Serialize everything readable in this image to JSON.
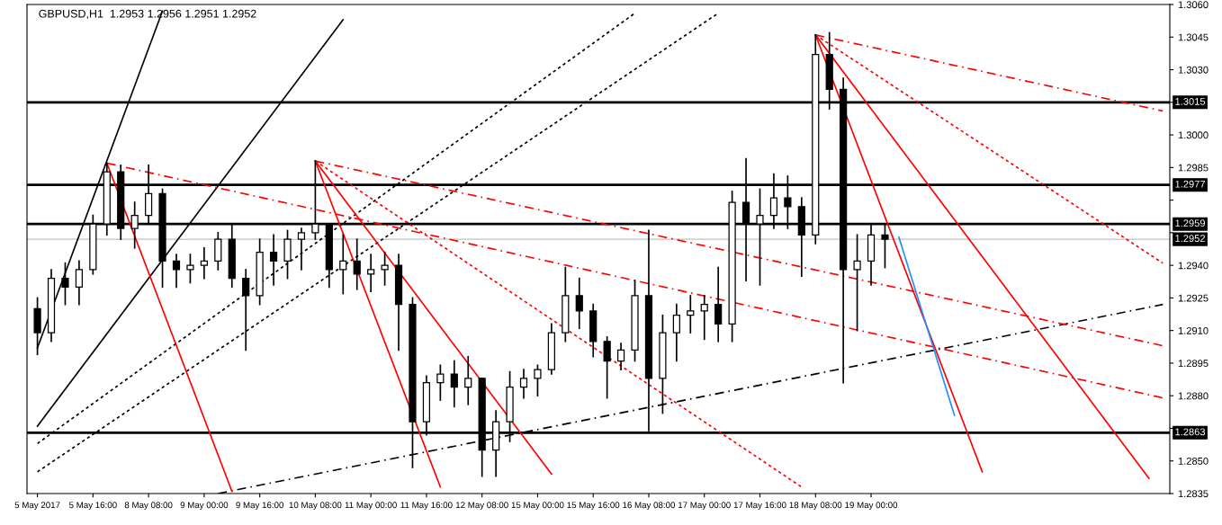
{
  "chart_data": {
    "type": "candlestick",
    "title": "GBPUSD,H1  1.2953 1.2956 1.2951 1.2952",
    "color": "#000000",
    "categories": [
      "5 May 2017",
      null,
      null,
      null,
      "5 May 16:00",
      null,
      null,
      null,
      "8 May 08:00",
      null,
      null,
      null,
      "9 May 00:00",
      null,
      null,
      null,
      "9 May 16:00",
      null,
      null,
      null,
      "10 May 08:00",
      null,
      null,
      null,
      "11 May 00:00",
      null,
      null,
      null,
      "11 May 16:00",
      null,
      null,
      null,
      "12 May 08:00",
      null,
      null,
      null,
      "15 May 00:00",
      null,
      null,
      null,
      "15 May 16:00",
      null,
      null,
      null,
      "16 May 08:00",
      null,
      null,
      null,
      "17 May 00:00",
      null,
      null,
      null,
      "17 May 16:00",
      null,
      null,
      null,
      "18 May 08:00",
      null,
      null,
      null,
      "19 May 00:00",
      null,
      null,
      null,
      null,
      null,
      null,
      null,
      null,
      null,
      null,
      null,
      null,
      null,
      null,
      null,
      null,
      null,
      null,
      null,
      null,
      null
    ],
    "ohlc": [
      [
        1.292,
        1.2925,
        1.2899,
        1.2909
      ],
      [
        1.2909,
        1.2938,
        1.2905,
        1.2934
      ],
      [
        1.2934,
        1.2941,
        1.2922,
        1.293
      ],
      [
        1.293,
        1.2942,
        1.2922,
        1.2938
      ],
      [
        1.2938,
        1.2963,
        1.2936,
        1.2959
      ],
      [
        1.2959,
        1.2987,
        1.2954,
        1.2983
      ],
      [
        1.2983,
        1.2986,
        1.2952,
        1.2957
      ],
      [
        1.2957,
        1.2969,
        1.2948,
        1.2963
      ],
      [
        1.2963,
        1.2986,
        1.2959,
        1.2973
      ],
      [
        1.2973,
        1.2975,
        1.293,
        1.2942
      ],
      [
        1.2942,
        1.2945,
        1.293,
        1.2938
      ],
      [
        1.2938,
        1.2945,
        1.2932,
        1.294
      ],
      [
        1.294,
        1.2948,
        1.2934,
        1.2942
      ],
      [
        1.2942,
        1.2955,
        1.2938,
        1.2952
      ],
      [
        1.2952,
        1.2959,
        1.293,
        1.2934
      ],
      [
        1.2934,
        1.2938,
        1.2901,
        1.2926
      ],
      [
        1.2926,
        1.2952,
        1.2922,
        1.2946
      ],
      [
        1.2946,
        1.2954,
        1.2931,
        1.2942
      ],
      [
        1.2942,
        1.2956,
        1.2934,
        1.2952
      ],
      [
        1.2952,
        1.2957,
        1.2938,
        1.2955
      ],
      [
        1.2955,
        1.2988,
        1.2952,
        1.2959
      ],
      [
        1.2959,
        1.2959,
        1.293,
        1.2938
      ],
      [
        1.2938,
        1.2954,
        1.2927,
        1.2942
      ],
      [
        1.2942,
        1.2952,
        1.2929,
        1.2936
      ],
      [
        1.2936,
        1.2945,
        1.2928,
        1.2938
      ],
      [
        1.2938,
        1.2946,
        1.2931,
        1.294
      ],
      [
        1.294,
        1.2945,
        1.2901,
        1.2922
      ],
      [
        1.2922,
        1.2925,
        1.2847,
        1.2868
      ],
      [
        1.2868,
        1.2889,
        1.2862,
        1.2886
      ],
      [
        1.2886,
        1.2894,
        1.2878,
        1.289
      ],
      [
        1.289,
        1.2896,
        1.2875,
        1.2884
      ],
      [
        1.2884,
        1.2898,
        1.2876,
        1.2888
      ],
      [
        1.2888,
        1.2888,
        1.2843,
        1.2855
      ],
      [
        1.2855,
        1.2873,
        1.2843,
        1.2868
      ],
      [
        1.2868,
        1.2891,
        1.2859,
        1.2884
      ],
      [
        1.2884,
        1.2892,
        1.2879,
        1.2888
      ],
      [
        1.2888,
        1.2894,
        1.288,
        1.2892
      ],
      [
        1.2892,
        1.2913,
        1.289,
        1.2909
      ],
      [
        1.2909,
        1.2939,
        1.2905,
        1.2926
      ],
      [
        1.2926,
        1.2934,
        1.2911,
        1.2919
      ],
      [
        1.2919,
        1.2922,
        1.2898,
        1.2905
      ],
      [
        1.2905,
        1.2907,
        1.2879,
        1.2896
      ],
      [
        1.2896,
        1.2904,
        1.2892,
        1.2901
      ],
      [
        1.2901,
        1.2933,
        1.2896,
        1.2926
      ],
      [
        1.2926,
        1.2956,
        1.2864,
        1.2888
      ],
      [
        1.2888,
        1.2917,
        1.2872,
        1.2909
      ],
      [
        1.2909,
        1.2922,
        1.2896,
        1.2917
      ],
      [
        1.2917,
        1.2926,
        1.2909,
        1.2919
      ],
      [
        1.2919,
        1.2926,
        1.2906,
        1.2922
      ],
      [
        1.2922,
        1.2939,
        1.2905,
        1.2913
      ],
      [
        1.2913,
        1.2974,
        1.2905,
        1.2969
      ],
      [
        1.2969,
        1.2989,
        1.2933,
        1.2959
      ],
      [
        1.2959,
        1.2975,
        1.2931,
        1.2963
      ],
      [
        1.2963,
        1.2982,
        1.2957,
        1.2971
      ],
      [
        1.2971,
        1.2981,
        1.2957,
        1.2967
      ],
      [
        1.2967,
        1.2971,
        1.2935,
        1.2954
      ],
      [
        1.2954,
        1.3046,
        1.295,
        1.3037
      ],
      [
        1.3037,
        1.3047,
        1.3012,
        1.3021
      ],
      [
        1.3021,
        1.3026,
        1.2886,
        1.2938
      ],
      [
        1.2938,
        1.2954,
        1.291,
        1.2942
      ],
      [
        1.2942,
        1.2959,
        1.2931,
        1.2954
      ],
      [
        1.2954,
        1.2959,
        1.2939,
        1.2952
      ],
      null,
      null,
      null,
      null,
      null,
      null,
      null,
      null,
      null,
      null,
      null,
      null,
      null,
      null,
      null,
      null,
      null,
      null,
      null,
      null
    ],
    "series": [
      {
        "type": "line",
        "color": "#000000",
        "line_style": "solid",
        "values": [
          1.2902,
          null,
          null,
          null,
          null,
          null,
          null,
          null,
          null,
          1.3057,
          null,
          null,
          null,
          null,
          null,
          null,
          null,
          null,
          null,
          null,
          null,
          null,
          null,
          null,
          null,
          null,
          null,
          null,
          null,
          null,
          null,
          null,
          null,
          null,
          null,
          null,
          null,
          null,
          null,
          null,
          null,
          null,
          null,
          null,
          null,
          null,
          null,
          null,
          null,
          null,
          null,
          null,
          null,
          null,
          null,
          null,
          null,
          null,
          null,
          null,
          null,
          null,
          null,
          null,
          null,
          null,
          null,
          null,
          null,
          null,
          null,
          null,
          null,
          null,
          null,
          null,
          null,
          null,
          null,
          null,
          null,
          null
        ]
      },
      {
        "type": "line",
        "color": "#000000",
        "line_style": "solid",
        "values": [
          1.2866,
          null,
          null,
          null,
          null,
          null,
          null,
          null,
          null,
          null,
          null,
          null,
          null,
          null,
          null,
          null,
          null,
          null,
          null,
          null,
          null,
          null,
          1.3053,
          null,
          null,
          null,
          null,
          null,
          null,
          null,
          null,
          null,
          null,
          null,
          null,
          null,
          null,
          null,
          null,
          null,
          null,
          null,
          null,
          null,
          null,
          null,
          null,
          null,
          null,
          null,
          null,
          null,
          null,
          null,
          null,
          null,
          null,
          null,
          null,
          null,
          null,
          null,
          null,
          null,
          null,
          null,
          null,
          null,
          null,
          null,
          null,
          null,
          null,
          null,
          null,
          null,
          null,
          null,
          null,
          null,
          null,
          null
        ]
      },
      {
        "type": "line",
        "color": "#000000",
        "line_style": "dotted",
        "values": [
          1.2858,
          null,
          null,
          null,
          null,
          null,
          null,
          null,
          null,
          null,
          null,
          null,
          null,
          null,
          null,
          null,
          null,
          null,
          null,
          null,
          null,
          null,
          null,
          null,
          null,
          null,
          null,
          null,
          null,
          null,
          null,
          null,
          null,
          null,
          null,
          null,
          null,
          null,
          null,
          null,
          null,
          null,
          null,
          1.3056,
          null,
          null,
          null,
          null,
          null,
          null,
          null,
          null,
          null,
          null,
          null,
          null,
          null,
          null,
          null,
          null,
          null,
          null,
          null,
          null,
          null,
          null,
          null,
          null,
          null,
          null,
          null,
          null,
          null,
          null,
          null,
          null,
          null,
          null,
          null,
          null,
          null,
          null
        ]
      },
      {
        "type": "line",
        "color": "#000000",
        "line_style": "dotted",
        "values": [
          1.2845,
          null,
          null,
          null,
          null,
          null,
          null,
          null,
          null,
          null,
          null,
          null,
          null,
          null,
          null,
          null,
          null,
          null,
          null,
          null,
          null,
          null,
          null,
          null,
          null,
          null,
          null,
          null,
          null,
          null,
          null,
          null,
          null,
          null,
          null,
          null,
          null,
          null,
          null,
          null,
          null,
          null,
          null,
          null,
          null,
          null,
          null,
          null,
          null,
          1.3056,
          null,
          null,
          null,
          null,
          null,
          null,
          null,
          null,
          null,
          null,
          null,
          null,
          null,
          null,
          null,
          null,
          null,
          null,
          null,
          null,
          null,
          null,
          null,
          null,
          null,
          null,
          null,
          null,
          null,
          null,
          null,
          null
        ]
      },
      {
        "type": "line",
        "color": "#000000",
        "line_style": "dashed",
        "values": [
          null,
          null,
          null,
          null,
          null,
          null,
          null,
          null,
          null,
          null,
          null,
          null,
          null,
          1.2835,
          null,
          null,
          null,
          null,
          null,
          null,
          null,
          null,
          null,
          null,
          null,
          null,
          null,
          null,
          null,
          null,
          null,
          null,
          null,
          null,
          null,
          null,
          null,
          null,
          null,
          null,
          null,
          null,
          null,
          null,
          null,
          null,
          null,
          null,
          null,
          null,
          null,
          null,
          null,
          null,
          null,
          null,
          null,
          null,
          null,
          null,
          null,
          null,
          null,
          null,
          null,
          null,
          null,
          null,
          null,
          null,
          null,
          null,
          null,
          null,
          null,
          null,
          null,
          null,
          null,
          null,
          null,
          1.2922
        ]
      },
      {
        "type": "line",
        "color": "#ff0000",
        "line_style": "solid",
        "values": [
          null,
          null,
          null,
          null,
          null,
          1.2987,
          null,
          null,
          null,
          null,
          null,
          null,
          null,
          null,
          1.2836,
          null,
          null,
          null,
          null,
          null,
          null,
          null,
          null,
          null,
          null,
          null,
          null,
          null,
          null,
          null,
          null,
          null,
          null,
          null,
          null,
          null,
          null,
          null,
          null,
          null,
          null,
          null,
          null,
          null,
          null,
          null,
          null,
          null,
          null,
          null,
          null,
          null,
          null,
          null,
          null,
          null,
          null,
          null,
          null,
          null,
          null,
          null,
          null,
          null,
          null,
          null,
          null,
          null,
          null,
          null,
          null,
          null,
          null,
          null,
          null,
          null,
          null,
          null,
          null,
          null,
          null,
          null
        ]
      },
      {
        "type": "line",
        "color": "#ff0000",
        "line_style": "solid",
        "values": [
          null,
          null,
          null,
          null,
          null,
          null,
          null,
          null,
          null,
          null,
          null,
          null,
          null,
          null,
          null,
          null,
          null,
          null,
          null,
          null,
          1.2988,
          null,
          null,
          null,
          null,
          null,
          null,
          null,
          null,
          1.2838,
          null,
          null,
          null,
          null,
          null,
          null,
          null,
          null,
          null,
          null,
          null,
          null,
          null,
          null,
          null,
          null,
          null,
          null,
          null,
          null,
          null,
          null,
          null,
          null,
          null,
          null,
          null,
          null,
          null,
          null,
          null,
          null,
          null,
          null,
          null,
          null,
          null,
          null,
          null,
          null,
          null,
          null,
          null,
          null,
          null,
          null,
          null,
          null,
          null,
          null,
          null,
          null
        ]
      },
      {
        "type": "line",
        "color": "#ff0000",
        "line_style": "solid",
        "values": [
          null,
          null,
          null,
          null,
          null,
          null,
          null,
          null,
          null,
          null,
          null,
          null,
          null,
          null,
          null,
          null,
          null,
          null,
          null,
          null,
          null,
          null,
          null,
          null,
          null,
          null,
          null,
          null,
          null,
          null,
          null,
          null,
          null,
          null,
          null,
          null,
          null,
          null,
          null,
          null,
          null,
          null,
          null,
          null,
          null,
          null,
          null,
          null,
          null,
          null,
          null,
          null,
          null,
          null,
          null,
          null,
          1.3046,
          null,
          null,
          null,
          null,
          null,
          null,
          null,
          null,
          null,
          null,
          null,
          1.2845,
          null,
          null,
          null,
          null,
          null,
          null,
          null,
          null,
          null,
          null,
          null,
          null,
          null
        ]
      },
      {
        "type": "line",
        "color": "#ff0000",
        "line_style": "solid",
        "values": [
          null,
          null,
          null,
          null,
          null,
          null,
          null,
          null,
          null,
          null,
          null,
          null,
          null,
          null,
          null,
          null,
          null,
          null,
          null,
          null,
          1.2988,
          null,
          null,
          null,
          null,
          null,
          null,
          null,
          null,
          null,
          null,
          null,
          null,
          null,
          null,
          null,
          null,
          1.2844,
          null,
          null,
          null,
          null,
          null,
          null,
          null,
          null,
          null,
          null,
          null,
          null,
          null,
          null,
          null,
          null,
          null,
          null,
          null,
          null,
          null,
          null,
          null,
          null,
          null,
          null,
          null,
          null,
          null,
          null,
          null,
          null,
          null,
          null,
          null,
          null,
          null,
          null,
          null,
          null,
          null,
          null,
          null,
          null
        ]
      },
      {
        "type": "line",
        "color": "#ff0000",
        "line_style": "solid",
        "values": [
          null,
          null,
          null,
          null,
          null,
          null,
          null,
          null,
          null,
          null,
          null,
          null,
          null,
          null,
          null,
          null,
          null,
          null,
          null,
          null,
          null,
          null,
          null,
          null,
          null,
          null,
          null,
          null,
          null,
          null,
          null,
          null,
          null,
          null,
          null,
          null,
          null,
          null,
          null,
          null,
          null,
          null,
          null,
          null,
          null,
          null,
          null,
          null,
          null,
          null,
          null,
          null,
          null,
          null,
          null,
          null,
          1.3046,
          null,
          null,
          null,
          null,
          null,
          null,
          null,
          null,
          null,
          null,
          null,
          null,
          null,
          null,
          null,
          null,
          null,
          null,
          null,
          null,
          null,
          null,
          null,
          1.2842,
          null
        ]
      },
      {
        "type": "line",
        "color": "#ff0000",
        "line_style": "dashed",
        "values": [
          null,
          null,
          null,
          null,
          null,
          1.2987,
          null,
          null,
          null,
          null,
          null,
          null,
          null,
          null,
          null,
          null,
          null,
          null,
          null,
          null,
          null,
          null,
          null,
          null,
          null,
          null,
          null,
          null,
          null,
          null,
          null,
          null,
          null,
          null,
          null,
          null,
          null,
          null,
          null,
          null,
          null,
          null,
          null,
          null,
          null,
          null,
          null,
          null,
          null,
          null,
          null,
          null,
          null,
          null,
          null,
          null,
          null,
          null,
          null,
          null,
          null,
          null,
          null,
          null,
          null,
          null,
          null,
          null,
          null,
          null,
          null,
          null,
          null,
          null,
          null,
          null,
          null,
          null,
          null,
          null,
          null,
          1.2879
        ]
      },
      {
        "type": "line",
        "color": "#ff0000",
        "line_style": "dashed",
        "values": [
          null,
          null,
          null,
          null,
          null,
          null,
          null,
          null,
          null,
          null,
          null,
          null,
          null,
          null,
          null,
          null,
          null,
          null,
          null,
          null,
          1.2988,
          null,
          null,
          null,
          null,
          null,
          null,
          null,
          null,
          null,
          null,
          null,
          null,
          null,
          null,
          null,
          null,
          null,
          null,
          null,
          null,
          null,
          null,
          null,
          null,
          null,
          null,
          null,
          null,
          null,
          null,
          null,
          null,
          null,
          null,
          null,
          null,
          null,
          null,
          null,
          null,
          null,
          null,
          null,
          null,
          null,
          null,
          null,
          null,
          null,
          null,
          null,
          null,
          null,
          null,
          null,
          null,
          null,
          null,
          null,
          null,
          1.2903
        ]
      },
      {
        "type": "line",
        "color": "#ff0000",
        "line_style": "dotted",
        "values": [
          null,
          null,
          null,
          null,
          null,
          null,
          null,
          null,
          null,
          null,
          null,
          null,
          null,
          null,
          null,
          null,
          null,
          null,
          null,
          null,
          1.2988,
          null,
          null,
          null,
          null,
          null,
          null,
          null,
          null,
          null,
          null,
          null,
          null,
          null,
          null,
          null,
          null,
          null,
          null,
          null,
          null,
          null,
          null,
          null,
          null,
          null,
          null,
          null,
          null,
          null,
          null,
          null,
          null,
          null,
          null,
          1.2838,
          null,
          null,
          null,
          null,
          null,
          null,
          null,
          null,
          null,
          null,
          null,
          null,
          null,
          null,
          null,
          null,
          null,
          null,
          null,
          null,
          null,
          null,
          null,
          null,
          null,
          null
        ]
      },
      {
        "type": "line",
        "color": "#ff0000",
        "line_style": "dashed",
        "values": [
          null,
          null,
          null,
          null,
          null,
          null,
          null,
          null,
          null,
          null,
          null,
          null,
          null,
          null,
          null,
          null,
          null,
          null,
          null,
          null,
          null,
          null,
          null,
          null,
          null,
          null,
          null,
          null,
          null,
          null,
          null,
          null,
          null,
          null,
          null,
          null,
          null,
          null,
          null,
          null,
          null,
          null,
          null,
          null,
          null,
          null,
          null,
          null,
          null,
          null,
          null,
          null,
          null,
          null,
          null,
          null,
          1.3046,
          null,
          null,
          null,
          null,
          null,
          null,
          null,
          null,
          null,
          null,
          null,
          null,
          null,
          null,
          null,
          null,
          null,
          null,
          null,
          null,
          null,
          null,
          null,
          null,
          1.3011
        ]
      },
      {
        "type": "line",
        "color": "#ff0000",
        "line_style": "dotted",
        "values": [
          null,
          null,
          null,
          null,
          null,
          null,
          null,
          null,
          null,
          null,
          null,
          null,
          null,
          null,
          null,
          null,
          null,
          null,
          null,
          null,
          null,
          null,
          null,
          null,
          null,
          null,
          null,
          null,
          null,
          null,
          null,
          null,
          null,
          null,
          null,
          null,
          null,
          null,
          null,
          null,
          null,
          null,
          null,
          null,
          null,
          null,
          null,
          null,
          null,
          null,
          null,
          null,
          null,
          null,
          null,
          null,
          1.3046,
          null,
          null,
          null,
          null,
          null,
          null,
          null,
          null,
          null,
          null,
          null,
          null,
          null,
          null,
          null,
          null,
          null,
          null,
          null,
          null,
          null,
          null,
          null,
          null,
          1.2941
        ]
      },
      {
        "type": "line",
        "color": "#1e90ff",
        "line_style": "solid",
        "values": [
          null,
          null,
          null,
          null,
          null,
          null,
          null,
          null,
          null,
          null,
          null,
          null,
          null,
          null,
          null,
          null,
          null,
          null,
          null,
          null,
          null,
          null,
          null,
          null,
          null,
          null,
          null,
          null,
          null,
          null,
          null,
          null,
          null,
          null,
          null,
          null,
          null,
          null,
          null,
          null,
          null,
          null,
          null,
          null,
          null,
          null,
          null,
          null,
          null,
          null,
          null,
          null,
          null,
          null,
          null,
          null,
          null,
          null,
          null,
          null,
          null,
          null,
          1.2953,
          null,
          null,
          null,
          1.2871,
          null,
          null,
          null,
          null,
          null,
          null,
          null,
          null,
          null,
          null,
          null,
          null,
          null,
          null,
          null
        ]
      }
    ],
    "ref_lines": [
      {
        "axis": "y",
        "value": 1.3015,
        "label": "1.3015",
        "color": "#000000"
      },
      {
        "axis": "y",
        "value": 1.2977,
        "label": "1.2977",
        "color": "#000000"
      },
      {
        "axis": "y",
        "value": 1.2959,
        "label": "1.2959",
        "color": "#000000"
      },
      {
        "axis": "y",
        "value": 1.2952,
        "label": "1.2952",
        "color": "#c0c0c0"
      },
      {
        "axis": "y",
        "value": 1.2863,
        "label": "1.2863",
        "color": "#000000"
      }
    ],
    "ylim": [
      1.2835,
      1.306
    ],
    "yticks": [
      1.2835,
      {
        "value": 1.285,
        "label": "1.2850"
      },
      {
        "value": 1.2865,
        "label": null
      },
      {
        "value": 1.288,
        "label": "1.2880"
      },
      1.2895,
      {
        "value": 1.291,
        "label": "1.2910"
      },
      1.2925,
      {
        "value": 1.294,
        "label": "1.2940"
      },
      {
        "value": 1.2955,
        "label": null
      },
      {
        "value": 1.297,
        "label": null
      },
      1.2985,
      {
        "value": 1.3,
        "label": "1.3000"
      },
      {
        "value": 1.3015,
        "label": null
      },
      {
        "value": 1.303,
        "label": "1.3030"
      },
      1.3045,
      {
        "value": 1.306,
        "label": "1.3060"
      }
    ]
  }
}
